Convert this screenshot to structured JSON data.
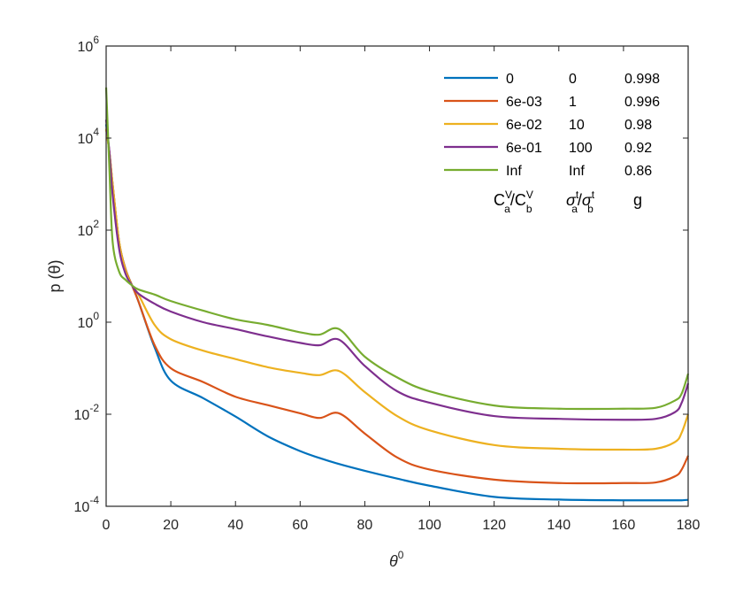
{
  "chart_data": {
    "type": "line",
    "xlabel": {
      "base": "θ",
      "sup": "0"
    },
    "ylabel": "p (θ)",
    "xlim": [
      0,
      180
    ],
    "ylim": [
      0.0001,
      1000000.0
    ],
    "yscale": "log",
    "grid": false,
    "legend_placement": "top-right",
    "x_ticks": [
      "0",
      "20",
      "40",
      "60",
      "80",
      "100",
      "120",
      "140",
      "160",
      "180"
    ],
    "y_ticks": [
      {
        "base": "10",
        "exp": "-4"
      },
      {
        "base": "10",
        "exp": "-2"
      },
      {
        "base": "10",
        "exp": "0"
      },
      {
        "base": "10",
        "exp": "2"
      },
      {
        "base": "10",
        "exp": "4"
      },
      {
        "base": "10",
        "exp": "6"
      }
    ],
    "x": [
      0,
      1,
      2,
      4,
      6,
      8,
      10,
      15,
      20,
      30,
      40,
      50,
      60,
      66,
      72,
      80,
      90,
      100,
      120,
      140,
      160,
      170,
      176,
      178,
      180
    ],
    "series": [
      {
        "name": [
          "0",
          "0",
          "0.998"
        ],
        "color": "#0072BD",
        "values": [
          20000.0,
          5000.0,
          1000.0,
          56.2,
          14.1,
          6.31,
          2.82,
          0.282,
          0.0537,
          0.0224,
          0.00891,
          0.00331,
          0.00158,
          0.00112,
          0.00083,
          0.00059,
          0.0004,
          0.00028,
          0.00016,
          0.00014,
          0.000135,
          0.000135,
          0.000135,
          0.000135,
          0.000138
        ]
      },
      {
        "name": [
          "6e-03",
          "1",
          "0.996"
        ],
        "color": "#D95319",
        "values": [
          16000.0,
          5000.0,
          1000.0,
          56.2,
          14.1,
          6.31,
          2.82,
          0.316,
          0.1,
          0.0501,
          0.024,
          0.0158,
          0.0105,
          0.0083,
          0.0105,
          0.0038,
          0.00115,
          0.00063,
          0.00038,
          0.00032,
          0.00032,
          0.00033,
          0.00045,
          0.00063,
          0.00126
        ]
      },
      {
        "name": [
          "6e-02",
          "10",
          "0.98"
        ],
        "color": "#EDB120",
        "values": [
          16000.0,
          5000.0,
          1000.0,
          56.2,
          13.2,
          6.31,
          3.98,
          0.871,
          0.427,
          0.24,
          0.158,
          0.105,
          0.0794,
          0.0708,
          0.0871,
          0.0302,
          0.00912,
          0.00447,
          0.00214,
          0.00178,
          0.0017,
          0.00178,
          0.00251,
          0.00398,
          0.01
        ]
      },
      {
        "name": [
          "6e-01",
          "100",
          "0.92"
        ],
        "color": "#7E2F8E",
        "values": [
          25000.0,
          5000.0,
          589,
          39.8,
          11.2,
          6.31,
          4.17,
          2.51,
          1.7,
          1.0,
          0.708,
          0.49,
          0.355,
          0.316,
          0.417,
          0.112,
          0.0316,
          0.0178,
          0.00912,
          0.00794,
          0.00759,
          0.00794,
          0.0112,
          0.0178,
          0.0468
        ]
      },
      {
        "name": [
          "Inf",
          "Inf",
          "0.86"
        ],
        "color": "#77AC30",
        "values": [
          126000.0,
          2240.0,
          56.2,
          12.6,
          8.32,
          6.31,
          5.13,
          3.98,
          2.88,
          1.78,
          1.15,
          0.871,
          0.603,
          0.537,
          0.708,
          0.178,
          0.0631,
          0.0316,
          0.0155,
          0.0132,
          0.0132,
          0.0138,
          0.02,
          0.0282,
          0.0759
        ]
      }
    ],
    "legend_header": [
      {
        "base1": "C",
        "sup1": "V",
        "sub1": "a",
        "sep": "/",
        "base2": "C",
        "sup2": "V",
        "sub2": "b"
      },
      {
        "base1": "σ",
        "sup1": "t",
        "sub1": "a",
        "sep": "/",
        "base2": "σ",
        "sup2": "t",
        "sub2": "b"
      },
      {
        "base1": "g"
      }
    ]
  }
}
